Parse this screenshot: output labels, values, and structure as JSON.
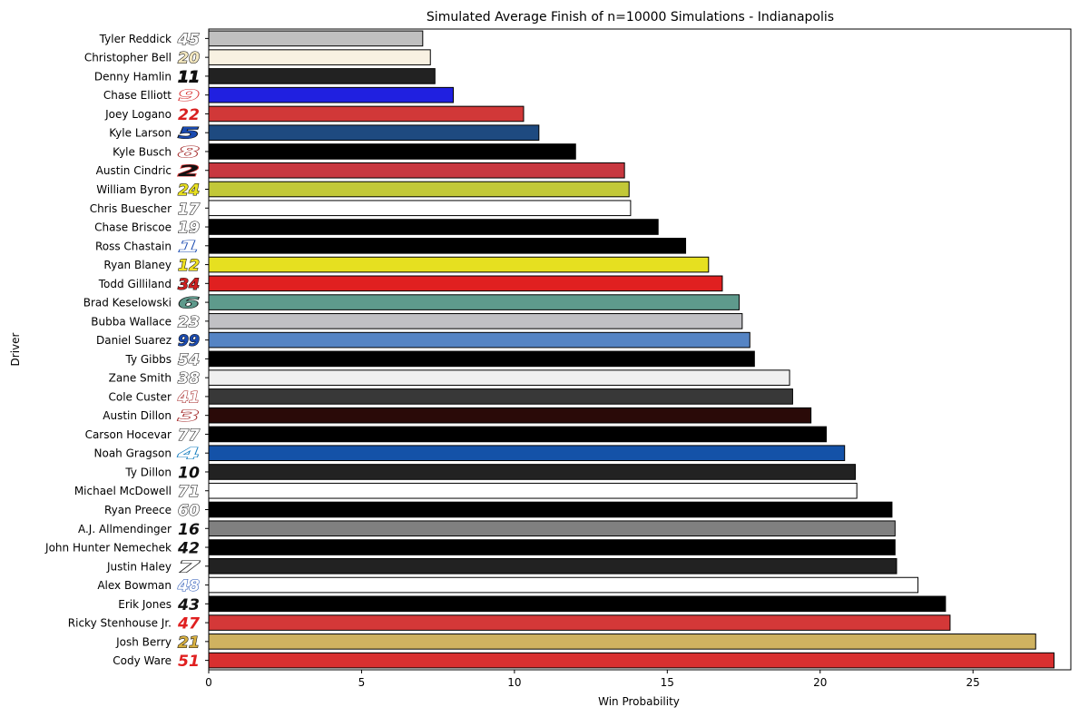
{
  "chart_data": {
    "type": "bar",
    "orientation": "horizontal",
    "title": "Simulated Average Finish of n=10000 Simulations - Indianapolis",
    "xlabel": "Win Probability",
    "ylabel": "Driver",
    "xlim": [
      0,
      28.2
    ],
    "xticks": [
      0,
      5,
      10,
      15,
      20,
      25
    ],
    "grid": false,
    "categories": [
      "Tyler Reddick",
      "Christopher Bell",
      "Denny Hamlin",
      "Chase Elliott",
      "Joey Logano",
      "Kyle Larson",
      "Kyle Busch",
      "Austin Cindric",
      "William Byron",
      "Chris Buescher",
      "Chase Briscoe",
      "Ross Chastain",
      "Ryan Blaney",
      "Todd Gilliland",
      "Brad Keselowski",
      "Bubba Wallace",
      "Daniel Suarez",
      "Ty Gibbs",
      "Zane Smith",
      "Cole Custer",
      "Austin Dillon",
      "Carson Hocevar",
      "Noah Gragson",
      "Ty Dillon",
      "Michael McDowell",
      "Ryan Preece",
      "A.J. Allmendinger",
      "John Hunter Nemechek",
      "Justin Haley",
      "Alex Bowman",
      "Erik Jones",
      "Ricky Stenhouse Jr.",
      "Josh Berry",
      "Cody Ware"
    ],
    "values": [
      7.0,
      7.25,
      7.4,
      8.0,
      10.3,
      10.8,
      12.0,
      13.6,
      13.75,
      13.8,
      14.7,
      15.6,
      16.35,
      16.8,
      17.35,
      17.45,
      17.7,
      17.85,
      19.0,
      19.1,
      19.7,
      20.2,
      20.8,
      21.15,
      21.2,
      22.35,
      22.45,
      22.45,
      22.5,
      23.2,
      24.1,
      24.25,
      27.05,
      27.65
    ],
    "bar_colors": [
      "#c0c0c0",
      "#f8f1e2",
      "#222222",
      "#2020e0",
      "#d13838",
      "#1e4a80",
      "#000000",
      "#c83840",
      "#c2c838",
      "#ffffff",
      "#000000",
      "#000000",
      "#e6e020",
      "#e02020",
      "#5e9a8c",
      "#c0c0c4",
      "#5584c4",
      "#000000",
      "#f0f0f0",
      "#383838",
      "#2a0a08",
      "#000000",
      "#1452a8",
      "#222222",
      "#ffffff",
      "#000000",
      "#808080",
      "#000000",
      "#222222",
      "#ffffff",
      "#000000",
      "#d43838",
      "#cfb260",
      "#d83030"
    ],
    "car_numbers": [
      "45",
      "20",
      "11",
      "9",
      "22",
      "5",
      "8",
      "2",
      "24",
      "17",
      "19",
      "1",
      "12",
      "34",
      "6",
      "23",
      "99",
      "54",
      "38",
      "41",
      "3",
      "77",
      "4",
      "10",
      "71",
      "60",
      "16",
      "42",
      "7",
      "48",
      "43",
      "47",
      "21",
      "51"
    ],
    "number_fill": [
      "#ffffff",
      "#f4e8c0",
      "#111111",
      "#ffffff",
      "#d82020",
      "#1a4ab0",
      "#ffffff",
      "#111111",
      "#e8e020",
      "#ffffff",
      "#ffffff",
      "#ffffff",
      "#f0e020",
      "#d02020",
      "#5e9a8c",
      "#ffffff",
      "#1a4ab0",
      "#ffffff",
      "#ffffff",
      "#ffffff",
      "#ffffff",
      "#ffffff",
      "#ffffff",
      "#111111",
      "#ffffff",
      "#ffffff",
      "#111111",
      "#111111",
      "#ffffff",
      "#ffffff",
      "#111111",
      "#e02020",
      "#d8b040",
      "#e02020"
    ],
    "number_stroke": [
      "#111111",
      "#111111",
      "#111111",
      "#d83030",
      "#ffffff",
      "#111111",
      "#a02020",
      "#d83030",
      "#111111",
      "#111111",
      "#111111",
      "#1a4ab0",
      "#111111",
      "#111111",
      "#111111",
      "#111111",
      "#111111",
      "#111111",
      "#111111",
      "#a02020",
      "#a02020",
      "#111111",
      "#1a80c0",
      "#ffffff",
      "#111111",
      "#111111",
      "#ffffff",
      "#ffffff",
      "#111111",
      "#1a4ab0",
      "#ffffff",
      "#ffffff",
      "#111111",
      "#ffffff"
    ]
  }
}
